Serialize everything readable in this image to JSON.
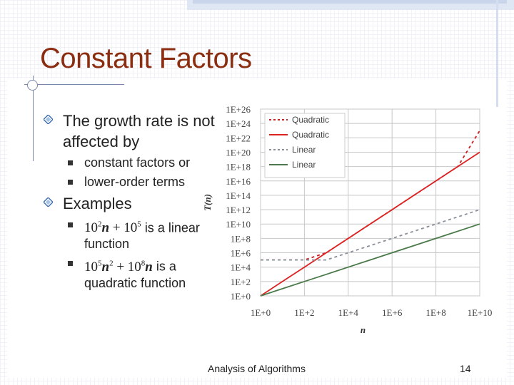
{
  "slide": {
    "title": "Constant Factors",
    "bullet1": "The growth rate is not affected by",
    "sub1": "constant factors or",
    "sub2": "lower-order terms",
    "bullet2": "Examples",
    "ex1_suffix": "is a linear function",
    "ex2_suffix": "is a quadratic function",
    "footer": "Analysis of Algorithms",
    "page": "14"
  },
  "chart_data": {
    "type": "line",
    "xlabel": "n",
    "ylabel": "T(n)",
    "log_scale": true,
    "xlim": [
      1,
      10000000000.0
    ],
    "ylim": [
      1,
      1e+26
    ],
    "xticks": [
      "1E+0",
      "1E+2",
      "1E+4",
      "1E+6",
      "1E+8",
      "1E+10"
    ],
    "yticks": [
      "1E+0",
      "1E+2",
      "1E+4",
      "1E+6",
      "1E+8",
      "1E+10",
      "1E+12",
      "1E+14",
      "1E+16",
      "1E+18",
      "1E+20",
      "1E+22",
      "1E+24",
      "1E+26"
    ],
    "legend_position": "top-left",
    "series": [
      {
        "name": "Quadratic",
        "color": "#cc2222",
        "style": "dotted",
        "x": [
          1,
          10,
          100,
          1000,
          10000,
          100000,
          1000000,
          10000000,
          100000000,
          1000000000,
          10000000000
        ],
        "y": [
          100000,
          100000,
          100000,
          1000000,
          100000000,
          10000000000,
          1000000000000,
          100000000000000,
          10000000000000000,
          1000000000000000000,
          100000000000000000000000
        ]
      },
      {
        "name": "Quadratic",
        "color": "#dd2222",
        "style": "solid",
        "x": [
          1,
          10,
          100,
          1000,
          10000,
          100000,
          1000000,
          10000000,
          100000000,
          1000000000,
          10000000000
        ],
        "y": [
          1,
          100,
          10000,
          1000000,
          100000000,
          10000000000,
          1000000000000,
          100000000000000,
          10000000000000000,
          1000000000000000000,
          100000000000000000000
        ]
      },
      {
        "name": "Linear",
        "color": "#8a9099",
        "style": "dotted",
        "x": [
          1,
          10,
          100,
          1000,
          10000,
          100000,
          1000000,
          10000000,
          100000000,
          1000000000,
          10000000000
        ],
        "y": [
          100000,
          100000,
          100000,
          100000,
          1000000,
          10000000,
          100000000,
          1000000000,
          10000000000,
          100000000000,
          1000000000000
        ]
      },
      {
        "name": "Linear",
        "color": "#4a7a4a",
        "style": "solid",
        "x": [
          1,
          10,
          100,
          1000,
          10000,
          100000,
          1000000,
          10000000,
          100000000,
          1000000000,
          10000000000
        ],
        "y": [
          1,
          10,
          100,
          1000,
          10000,
          100000,
          1000000,
          10000000,
          100000000,
          1000000000,
          10000000000
        ]
      }
    ]
  }
}
